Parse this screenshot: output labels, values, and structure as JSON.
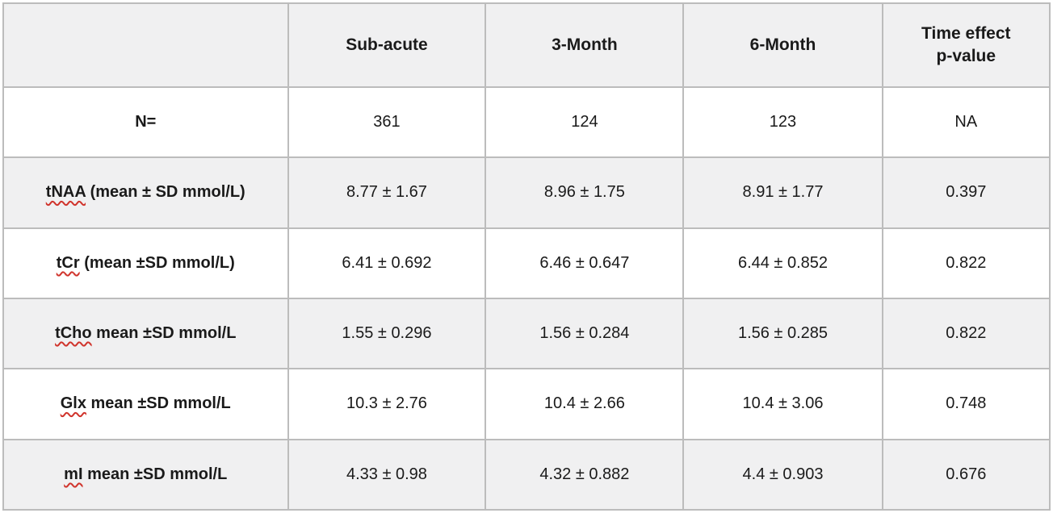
{
  "table": {
    "header_row": [
      "",
      "Sub-acute",
      "3-Month",
      "6-Month",
      "Time effect\np-value"
    ],
    "rows": [
      {
        "label": {
          "term": "N=",
          "rest": "",
          "misspelled": false
        },
        "cells": [
          "361",
          "124",
          "123",
          "NA"
        ]
      },
      {
        "label": {
          "term": "tNAA",
          "rest": " (mean ± SD mmol/L)",
          "misspelled": true
        },
        "cells": [
          "8.77 ± 1.67",
          "8.96 ± 1.75",
          "8.91 ± 1.77",
          "0.397"
        ]
      },
      {
        "label": {
          "term": "tCr",
          "rest": " (mean ±SD mmol/L)",
          "misspelled": true
        },
        "cells": [
          "6.41 ± 0.692",
          "6.46 ± 0.647",
          "6.44 ± 0.852",
          "0.822"
        ]
      },
      {
        "label": {
          "term": "tCho",
          "rest": " mean ±SD mmol/L",
          "misspelled": true
        },
        "cells": [
          "1.55 ± 0.296",
          "1.56 ± 0.284",
          "1.56 ± 0.285",
          "0.822"
        ]
      },
      {
        "label": {
          "term": "Glx",
          "rest": " mean ±SD mmol/L",
          "misspelled": true
        },
        "cells": [
          "10.3 ± 2.76",
          "10.4 ± 2.66",
          "10.4 ± 3.06",
          "0.748"
        ]
      },
      {
        "label": {
          "term": "mI",
          "rest": " mean ±SD mmol/L",
          "misspelled": true
        },
        "cells": [
          "4.33 ± 0.98",
          "4.32 ± 0.882",
          "4.4 ± 0.903",
          "0.676"
        ]
      }
    ],
    "colors": {
      "shaded_row_bg": "#f0f0f1",
      "border": "#bcbcbc",
      "text": "#1a1a1a",
      "spellcheck_underline": "#d0342c"
    }
  }
}
